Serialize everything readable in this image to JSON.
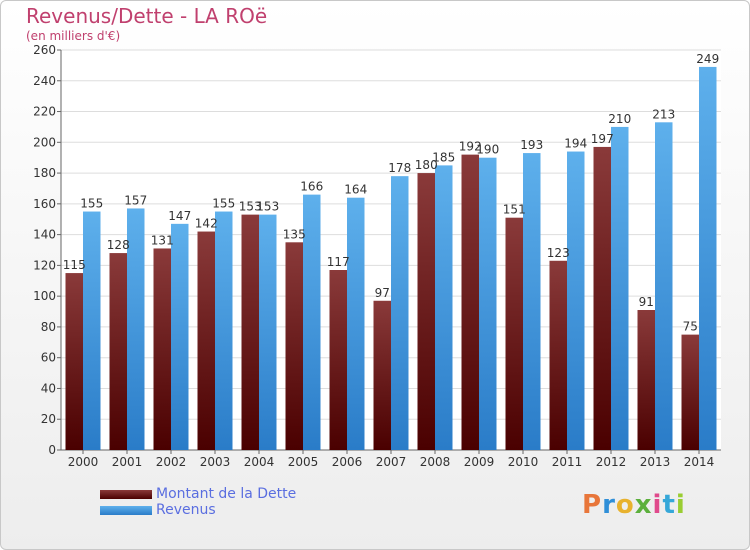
{
  "header": {
    "title": "Revenus/Dette - LA ROë",
    "subtitle": "(en milliers d'€)"
  },
  "logo": {
    "text": "Proxiti",
    "colors": [
      "#e8763a",
      "#2f8fd8",
      "#e8b22e",
      "#5cb03c",
      "#e04a8c",
      "#35a7d8",
      "#9acd32"
    ]
  },
  "colors": {
    "dette_dark": "#5a0a0a",
    "dette_light": "#8a3a3a",
    "revenus_dark": "#2a7cc8",
    "revenus_light": "#5eb0ec"
  },
  "chart_data": {
    "type": "bar",
    "title": "Revenus/Dette - LA ROë",
    "subtitle": "(en milliers d'€)",
    "categories": [
      "2000",
      "2001",
      "2002",
      "2003",
      "2004",
      "2005",
      "2006",
      "2007",
      "2008",
      "2009",
      "2010",
      "2011",
      "2012",
      "2013",
      "2014"
    ],
    "series": [
      {
        "name": "Montant de la Dette",
        "values": [
          115,
          128,
          131,
          142,
          153,
          135,
          117,
          97,
          180,
          192,
          151,
          123,
          197,
          91,
          75
        ]
      },
      {
        "name": "Revenus",
        "values": [
          155,
          157,
          147,
          155,
          153,
          166,
          164,
          178,
          185,
          190,
          193,
          194,
          210,
          213,
          249
        ]
      }
    ],
    "ylim": [
      0,
      260
    ],
    "yticks": [
      0,
      20,
      40,
      60,
      80,
      100,
      120,
      140,
      160,
      180,
      200,
      220,
      240,
      260
    ],
    "grid": true,
    "legend": "bottom-left"
  }
}
